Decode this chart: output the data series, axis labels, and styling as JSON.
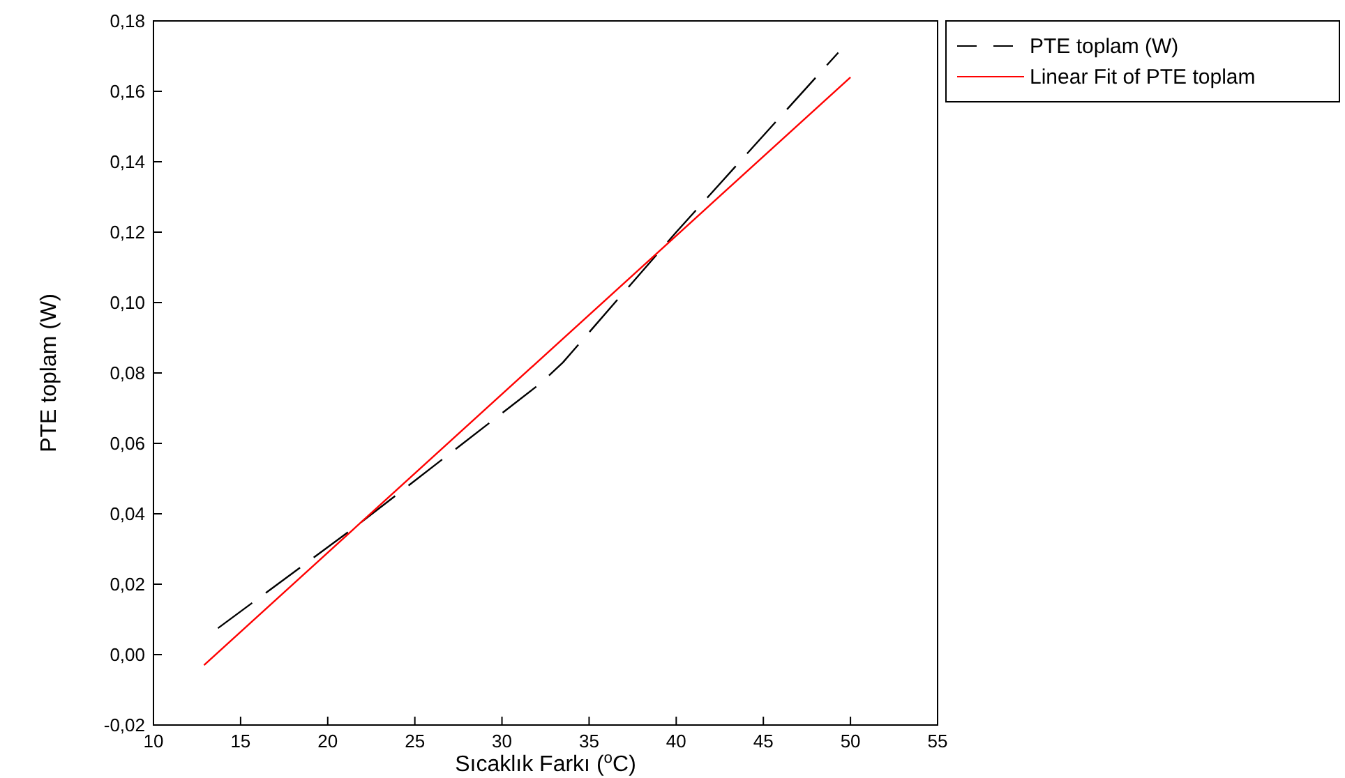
{
  "chart_data": {
    "type": "line",
    "xlabel": "Sıcaklık Farkı ($^{o}$C)",
    "ylabel": "PTE toplam (W)",
    "xlim": [
      10,
      55
    ],
    "xticks": [
      10,
      15,
      20,
      25,
      30,
      35,
      40,
      45,
      50,
      55
    ],
    "ylim": [
      -0.02,
      0.18
    ],
    "yticks": [
      {
        "value": -0.02,
        "label": "-0,02"
      },
      {
        "value": 0,
        "label": "0,00"
      },
      {
        "value": 0.02,
        "label": "0,02"
      },
      {
        "value": 0.04,
        "label": "0,04"
      },
      {
        "value": 0.06,
        "label": "0,06"
      },
      {
        "value": 0.08,
        "label": "0,08"
      },
      {
        "value": 0.1,
        "label": "0,10"
      },
      {
        "value": 0.12,
        "label": "0,12"
      },
      {
        "value": 0.14,
        "label": "0,14"
      },
      {
        "value": 0.16,
        "label": "0,16"
      },
      {
        "value": 0.18,
        "label": "0,18"
      }
    ],
    "legend": "top right",
    "grid": false,
    "marker": "none",
    "series": [
      {
        "name": "PTE toplam (W)",
        "color": "#000000",
        "line_style": "dashed",
        "x": [
          13.7,
          21.5,
          32.2,
          33.5,
          40,
          49.3
        ],
        "values": [
          0.0075,
          0.036,
          0.077,
          0.083,
          0.12,
          0.171
        ]
      },
      {
        "name": "Linear Fit of PTE toplam",
        "color": "#ff0000",
        "line_style": "solid",
        "x": [
          12.9,
          50
        ],
        "values": [
          -0.003,
          0.164
        ]
      }
    ]
  }
}
